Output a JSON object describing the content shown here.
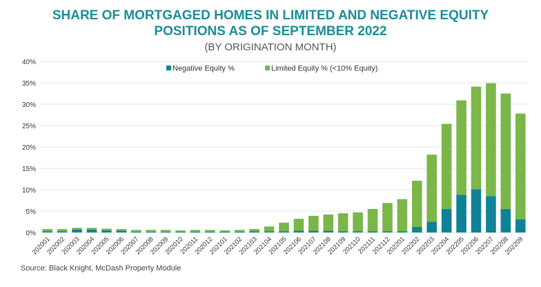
{
  "chart_data": {
    "type": "bar",
    "stacked": true,
    "title": "SHARE OF MORTGAGED HOMES IN LIMITED AND NEGATIVE EQUITY POSITIONS AS OF SEPTEMBER 2022",
    "title_line1": "SHARE OF MORTGAGED HOMES IN LIMITED AND NEGATIVE EQUITY",
    "title_line2": "POSITIONS AS OF SEPTEMBER 2022",
    "subtitle": "(BY ORIGINATION MONTH)",
    "source": "Source: Black Knight, McDash Property Module",
    "xlabel": "",
    "ylabel": "",
    "ylim": [
      0,
      40
    ],
    "yticks": [
      "0%",
      "5%",
      "10%",
      "15%",
      "20%",
      "25%",
      "30%",
      "35%",
      "40%"
    ],
    "grid": true,
    "legend_position": "top-right",
    "categories": [
      "202001",
      "202002",
      "202003",
      "202004",
      "202005",
      "202006",
      "202007",
      "202008",
      "202009",
      "202010",
      "202011",
      "202012",
      "202101",
      "202102",
      "202103",
      "202104",
      "202105",
      "202106",
      "202107",
      "202108",
      "202109",
      "202110",
      "202111",
      "202112",
      "202201",
      "202202",
      "202203",
      "202204",
      "202205",
      "202206",
      "202207",
      "202208",
      "202209"
    ],
    "series": [
      {
        "name": "Negative Equity %",
        "color": "#0e8296",
        "values": [
          0.3,
          0.3,
          0.7,
          0.7,
          0.5,
          0.4,
          0.2,
          0.2,
          0.2,
          0.2,
          0.2,
          0.2,
          0.2,
          0.2,
          0.3,
          0.3,
          0.3,
          0.4,
          0.4,
          0.4,
          0.3,
          0.3,
          0.3,
          0.3,
          0.3,
          1.3,
          2.5,
          5.5,
          8.8,
          10.1,
          8.5,
          5.5,
          3.1
        ]
      },
      {
        "name": "Limited Equity % (<10% Equity)",
        "color": "#7ab648",
        "values": [
          0.5,
          0.5,
          0.4,
          0.4,
          0.4,
          0.4,
          0.4,
          0.4,
          0.4,
          0.3,
          0.4,
          0.4,
          0.3,
          0.4,
          0.5,
          1.1,
          2.0,
          2.8,
          3.5,
          3.8,
          4.2,
          4.4,
          5.2,
          6.6,
          7.5,
          10.8,
          15.7,
          19.9,
          22.1,
          24.0,
          26.4,
          27.0,
          24.7
        ]
      }
    ]
  }
}
